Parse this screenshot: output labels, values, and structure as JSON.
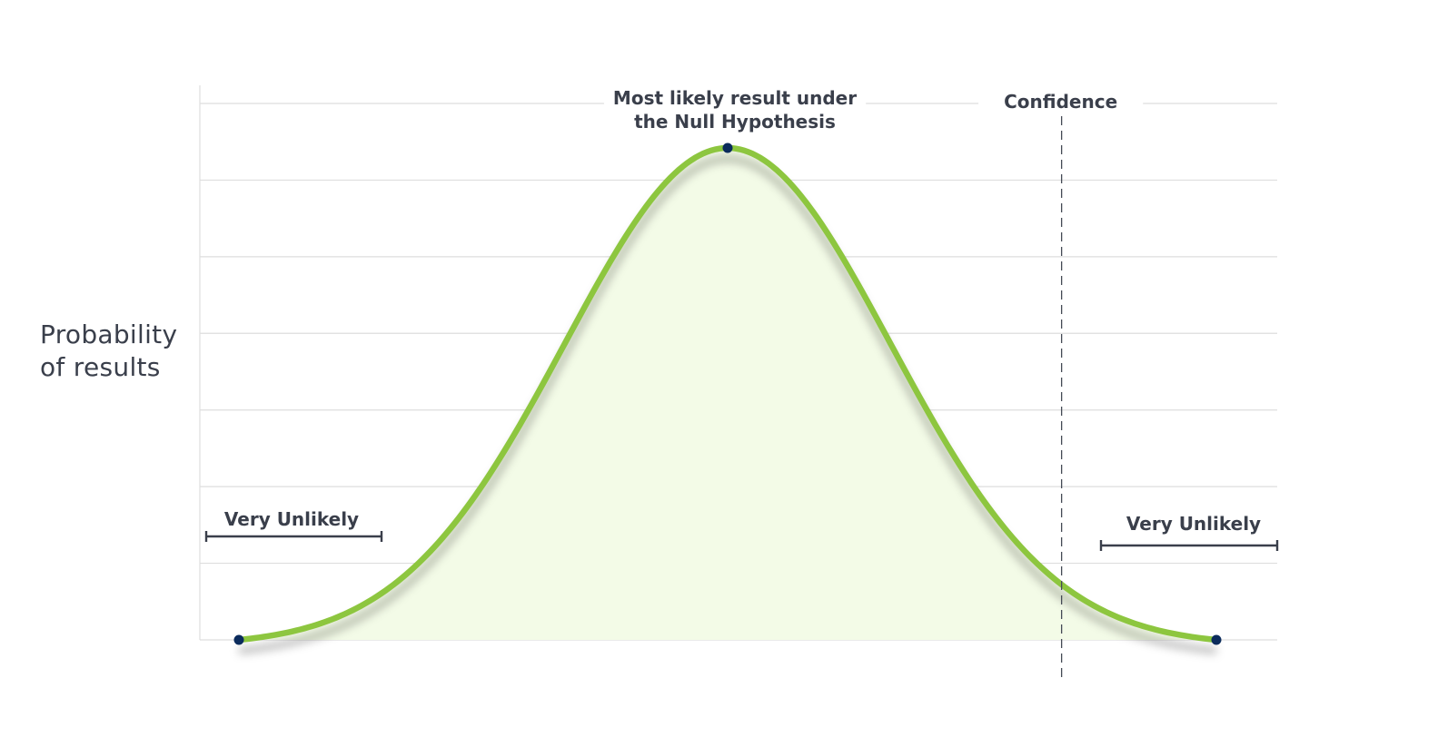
{
  "chart_data": {
    "type": "area",
    "ylabel": [
      "Probability",
      "of results"
    ],
    "xlabel": "",
    "grid": true,
    "curve": {
      "distribution": "normal",
      "mean": 0,
      "std": 1,
      "xlim": [
        -3,
        3
      ]
    },
    "annotations": {
      "peak": [
        "Most likely result under",
        "the Null Hypothesis"
      ],
      "confidence": {
        "label": "Confidence",
        "x": 2.05
      },
      "tails": [
        {
          "label": "Very Unlikely",
          "side": "left"
        },
        {
          "label": "Very Unlikely",
          "side": "right"
        }
      ]
    },
    "colors": {
      "curve": "#8dc63f",
      "fill": "#f3fbe7",
      "grid": "#dedede",
      "marker": "#0b2b5c",
      "text": "#3a3f4b",
      "bracket": "#3a3f4b"
    }
  }
}
